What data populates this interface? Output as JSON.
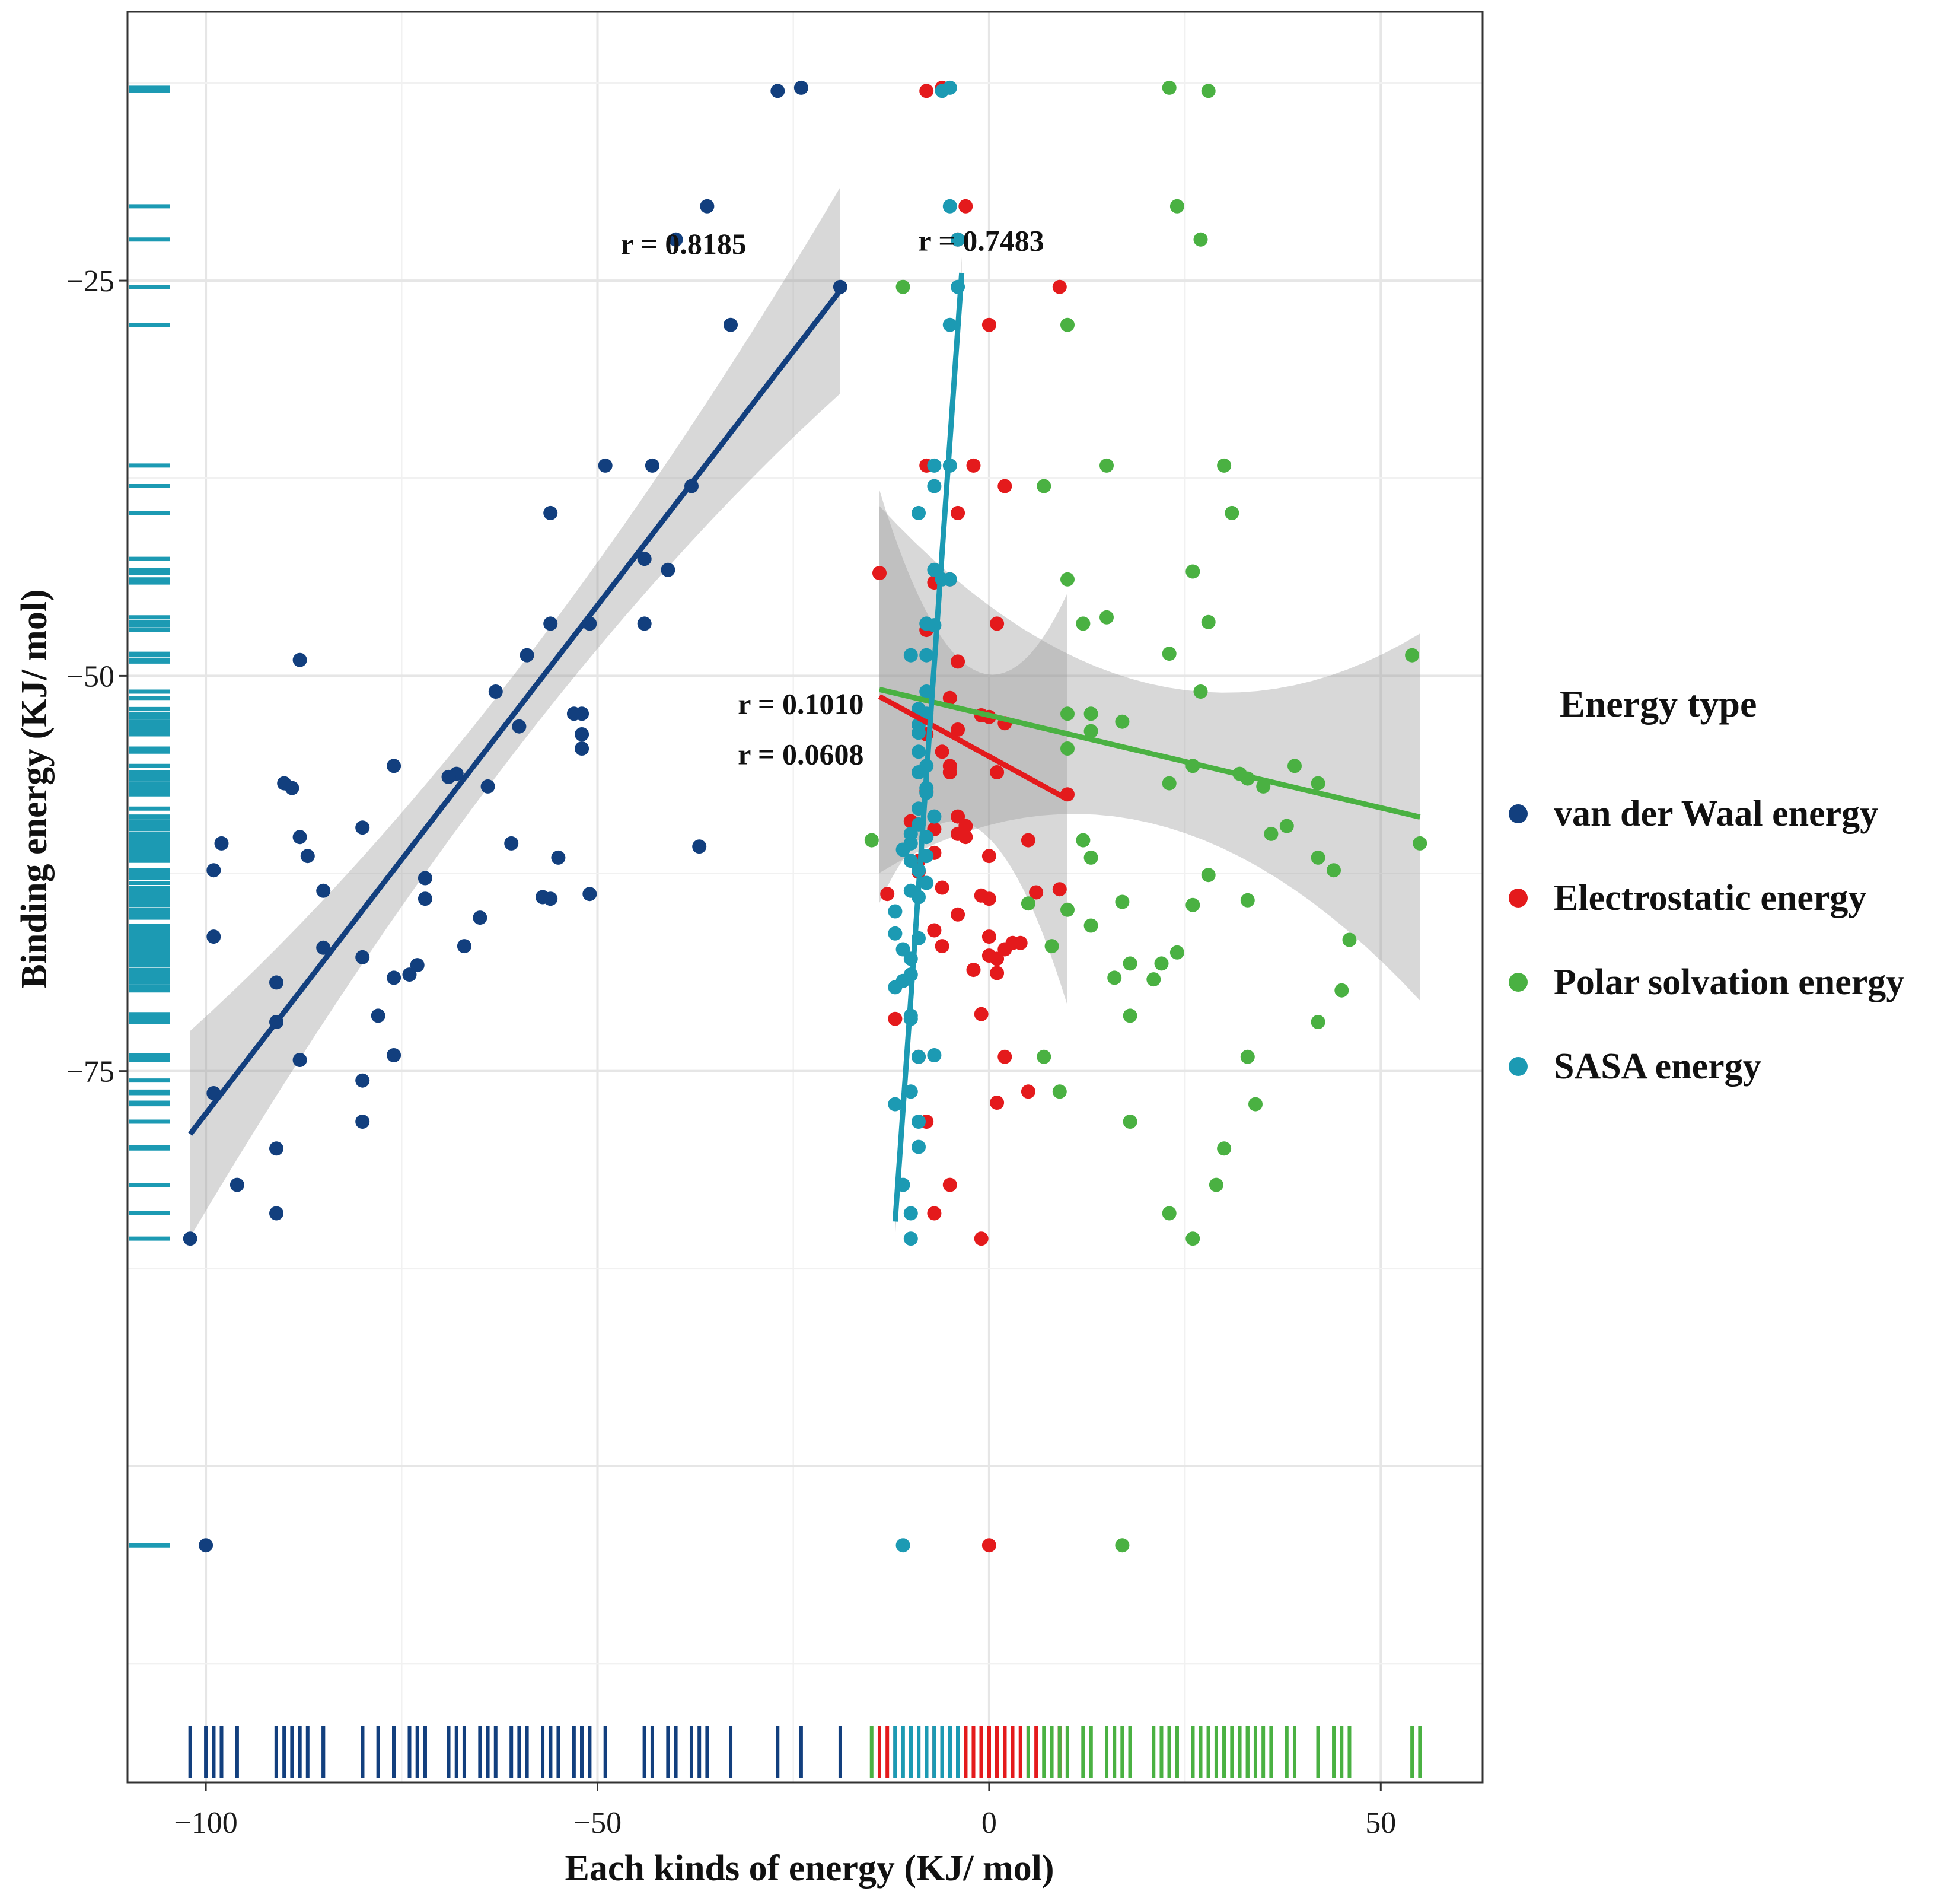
{
  "chart_data": {
    "type": "scatter",
    "xlabel": "Each kinds of energy (KJ/ mol)",
    "ylabel": "Binding energy  (KJ/ mol)",
    "xlim": [
      -110,
      63
    ],
    "ylim": [
      -120,
      -8
    ],
    "x_ticks": [
      -100,
      -50,
      0,
      50
    ],
    "x_tick_labels": [
      "−100",
      "−50",
      "0",
      "50"
    ],
    "y_ticks": [
      -25,
      -50,
      -75
    ],
    "y_tick_labels": [
      "−25",
      "−50",
      "−75"
    ],
    "grid": true,
    "legend": {
      "title": "Energy type",
      "position": "right"
    },
    "series": [
      {
        "name": "van der Waal energy",
        "color": "#123f7e",
        "r_label": "r = 0.8185",
        "fit": {
          "x0": -102,
          "x1": -19,
          "slope": 0.643,
          "intercept": -13.4,
          "band": 4.5
        },
        "points": [
          [
            -27,
            -13
          ],
          [
            -24,
            -12.8
          ],
          [
            -36,
            -20.3
          ],
          [
            -40,
            -22.4
          ],
          [
            -19,
            -25.4
          ],
          [
            -33,
            -27.8
          ],
          [
            -49,
            -36.7
          ],
          [
            -43,
            -36.7
          ],
          [
            -38,
            -38
          ],
          [
            -56,
            -39.7
          ],
          [
            -44,
            -42.6
          ],
          [
            -41,
            -43.3
          ],
          [
            -44,
            -46.7
          ],
          [
            -56,
            -46.7
          ],
          [
            -51,
            -46.7
          ],
          [
            -59,
            -48.7
          ],
          [
            -88,
            -49
          ],
          [
            -63,
            -51
          ],
          [
            -53,
            -52.4
          ],
          [
            -52,
            -52.4
          ],
          [
            -60,
            -53.2
          ],
          [
            -52,
            -53.7
          ],
          [
            -52,
            -54.6
          ],
          [
            -76,
            -55.7
          ],
          [
            -68,
            -56.2
          ],
          [
            -69,
            -56.4
          ],
          [
            -64,
            -57
          ],
          [
            -90,
            -56.8
          ],
          [
            -89,
            -57.1
          ],
          [
            -80,
            -59.6
          ],
          [
            -88,
            -60.2
          ],
          [
            -98,
            -60.6
          ],
          [
            -61,
            -60.6
          ],
          [
            -37,
            -60.8
          ],
          [
            -87,
            -61.4
          ],
          [
            -55,
            -61.5
          ],
          [
            -99,
            -62.3
          ],
          [
            -72,
            -62.8
          ],
          [
            -85,
            -63.6
          ],
          [
            -57,
            -64
          ],
          [
            -56,
            -64.1
          ],
          [
            -51,
            -63.8
          ],
          [
            -72,
            -64.1
          ],
          [
            -65,
            -65.3
          ],
          [
            -99,
            -66.5
          ],
          [
            -85,
            -67.2
          ],
          [
            -80,
            -67.8
          ],
          [
            -67,
            -67.1
          ],
          [
            -73,
            -68.3
          ],
          [
            -74,
            -68.9
          ],
          [
            -76,
            -69.1
          ],
          [
            -91,
            -69.4
          ],
          [
            -78,
            -71.5
          ],
          [
            -91,
            -71.9
          ],
          [
            -76,
            -74
          ],
          [
            -88,
            -74.3
          ],
          [
            -80,
            -75.6
          ],
          [
            -99,
            -76.4
          ],
          [
            -80,
            -78.2
          ],
          [
            -91,
            -79.9
          ],
          [
            -96,
            -82.2
          ],
          [
            -91,
            -84
          ],
          [
            -102,
            -85.6
          ],
          [
            -100,
            -105
          ]
        ]
      },
      {
        "name": "Electrostatic energy",
        "color": "#e41a1c",
        "r_label": "r = 0.0608",
        "fit": {
          "x0": -14,
          "x1": 10,
          "slope": -0.271,
          "intercept": -55.1,
          "band": 9
        },
        "points": [
          [
            -8,
            -13
          ],
          [
            -6,
            -12.8
          ],
          [
            -3,
            -20.3
          ],
          [
            -4,
            -22.4
          ],
          [
            9,
            -25.4
          ],
          [
            0,
            -27.8
          ],
          [
            -8,
            -36.7
          ],
          [
            -2,
            -36.7
          ],
          [
            2,
            -38
          ],
          [
            -4,
            -39.7
          ],
          [
            -14,
            -43.5
          ],
          [
            -5,
            -43.9
          ],
          [
            -7,
            -44.1
          ],
          [
            1,
            -46.7
          ],
          [
            -8,
            -47.1
          ],
          [
            -4,
            -49.1
          ],
          [
            -5,
            -51.4
          ],
          [
            -1,
            -52.5
          ],
          [
            0,
            -52.6
          ],
          [
            2,
            -53
          ],
          [
            -4,
            -53.4
          ],
          [
            -8,
            -53.7
          ],
          [
            -6,
            -54.8
          ],
          [
            -5,
            -55.7
          ],
          [
            -5,
            -56.1
          ],
          [
            1,
            -56.1
          ],
          [
            -8,
            -57.3
          ],
          [
            10,
            -57.5
          ],
          [
            -4,
            -58.9
          ],
          [
            -10,
            -59.2
          ],
          [
            -3,
            -59.5
          ],
          [
            -7,
            -59.7
          ],
          [
            -4,
            -60
          ],
          [
            -3,
            -60.2
          ],
          [
            -7,
            -61.2
          ],
          [
            0,
            -61.4
          ],
          [
            -9,
            -61.7
          ],
          [
            5,
            -60.4
          ],
          [
            -9,
            -62.4
          ],
          [
            -13,
            -63.8
          ],
          [
            -1,
            -63.9
          ],
          [
            -6,
            -63.4
          ],
          [
            0,
            -64.1
          ],
          [
            6,
            -63.7
          ],
          [
            9,
            -63.5
          ],
          [
            -4,
            -65.1
          ],
          [
            -7,
            -66.1
          ],
          [
            0,
            -66.5
          ],
          [
            3,
            -66.9
          ],
          [
            4,
            -66.9
          ],
          [
            -6,
            -67.1
          ],
          [
            2,
            -67.3
          ],
          [
            0,
            -67.7
          ],
          [
            1,
            -67.9
          ],
          [
            -2,
            -68.6
          ],
          [
            1,
            -68.8
          ],
          [
            -12,
            -71.7
          ],
          [
            -1,
            -71.4
          ],
          [
            -9,
            -74.1
          ],
          [
            2,
            -74.1
          ],
          [
            5,
            -76.3
          ],
          [
            1,
            -77
          ],
          [
            -8,
            -78.2
          ],
          [
            -5,
            -82.2
          ],
          [
            -7,
            -84
          ],
          [
            -1,
            -85.6
          ],
          [
            0,
            -105
          ]
        ]
      },
      {
        "name": "Polar solvation energy",
        "color": "#4ab142",
        "r_label": "r = 0.1010",
        "fit": {
          "x0": -14,
          "x1": 55,
          "slope": -0.117,
          "intercept": -52.5,
          "band": 8
        },
        "points": [
          [
            23,
            -12.8
          ],
          [
            28,
            -13
          ],
          [
            24,
            -20.3
          ],
          [
            27,
            -22.4
          ],
          [
            -11,
            -25.4
          ],
          [
            10,
            -27.8
          ],
          [
            15,
            -36.7
          ],
          [
            30,
            -36.7
          ],
          [
            7,
            -38
          ],
          [
            31,
            -39.7
          ],
          [
            10,
            -43.9
          ],
          [
            26,
            -43.4
          ],
          [
            12,
            -46.7
          ],
          [
            15,
            -46.3
          ],
          [
            28,
            -46.6
          ],
          [
            54,
            -48.7
          ],
          [
            23,
            -48.6
          ],
          [
            27,
            -51
          ],
          [
            10,
            -52.4
          ],
          [
            13,
            -52.4
          ],
          [
            17,
            -52.9
          ],
          [
            13,
            -53.5
          ],
          [
            10,
            -54.6
          ],
          [
            26,
            -55.7
          ],
          [
            23,
            -56.8
          ],
          [
            32,
            -56.2
          ],
          [
            35,
            -57
          ],
          [
            39,
            -55.7
          ],
          [
            42,
            -56.8
          ],
          [
            33,
            -56.5
          ],
          [
            36,
            -60
          ],
          [
            38,
            -59.5
          ],
          [
            12,
            -60.4
          ],
          [
            55,
            -60.6
          ],
          [
            13,
            -61.5
          ],
          [
            42,
            -61.5
          ],
          [
            44,
            -62.3
          ],
          [
            28,
            -62.6
          ],
          [
            33,
            -64.2
          ],
          [
            5,
            -64.4
          ],
          [
            26,
            -64.5
          ],
          [
            17,
            -64.3
          ],
          [
            10,
            -64.8
          ],
          [
            13,
            -65.8
          ],
          [
            46,
            -66.7
          ],
          [
            8,
            -67.1
          ],
          [
            22,
            -68.2
          ],
          [
            24,
            -67.5
          ],
          [
            18,
            -68.2
          ],
          [
            16,
            -69.1
          ],
          [
            21,
            -69.2
          ],
          [
            45,
            -69.9
          ],
          [
            18,
            -71.5
          ],
          [
            42,
            -71.9
          ],
          [
            33,
            -74.1
          ],
          [
            7,
            -74.1
          ],
          [
            9,
            -76.3
          ],
          [
            34,
            -77.1
          ],
          [
            18,
            -78.2
          ],
          [
            30,
            -79.9
          ],
          [
            29,
            -82.2
          ],
          [
            23,
            -84
          ],
          [
            26,
            -85.6
          ],
          [
            17,
            -105
          ],
          [
            -15,
            -60.4
          ]
        ]
      },
      {
        "name": "SASA energy",
        "color": "#1c9ab3",
        "r_label": "r = 0.7483",
        "fit": {
          "x0": -12,
          "x1": -3.5,
          "slope": 7.06,
          "intercept": 0.2,
          "band": 0.7
        },
        "points": [
          [
            -5,
            -12.8
          ],
          [
            -6,
            -13
          ],
          [
            -5,
            -20.3
          ],
          [
            -4,
            -22.4
          ],
          [
            -4,
            -25.4
          ],
          [
            -5,
            -27.8
          ],
          [
            -7,
            -36.7
          ],
          [
            -5,
            -36.7
          ],
          [
            -7,
            -38
          ],
          [
            -9,
            -39.7
          ],
          [
            -7,
            -43.3
          ],
          [
            -6,
            -43.9
          ],
          [
            -5,
            -43.9
          ],
          [
            -8,
            -46.7
          ],
          [
            -7,
            -46.8
          ],
          [
            -10,
            -48.7
          ],
          [
            -8,
            -48.7
          ],
          [
            -8,
            -51
          ],
          [
            -9,
            -52.1
          ],
          [
            -8,
            -52.4
          ],
          [
            -9,
            -53.1
          ],
          [
            -9,
            -53.6
          ],
          [
            -9,
            -54.8
          ],
          [
            -8,
            -55.7
          ],
          [
            -9,
            -56.1
          ],
          [
            -8,
            -57.1
          ],
          [
            -8,
            -57.4
          ],
          [
            -9,
            -58.4
          ],
          [
            -7,
            -58.9
          ],
          [
            -9,
            -59.4
          ],
          [
            -10,
            -60
          ],
          [
            -8,
            -60.2
          ],
          [
            -10,
            -60.6
          ],
          [
            -11,
            -61
          ],
          [
            -8,
            -61.4
          ],
          [
            -10,
            -61.7
          ],
          [
            -9,
            -62.3
          ],
          [
            -8,
            -63.1
          ],
          [
            -10,
            -63.6
          ],
          [
            -9,
            -64
          ],
          [
            -12,
            -64.9
          ],
          [
            -12,
            -66.3
          ],
          [
            -9,
            -66.6
          ],
          [
            -11,
            -67.3
          ],
          [
            -10,
            -67.9
          ],
          [
            -10,
            -68.9
          ],
          [
            -11,
            -69.3
          ],
          [
            -12,
            -69.7
          ],
          [
            -10,
            -71.5
          ],
          [
            -10,
            -71.7
          ],
          [
            -9,
            -74.1
          ],
          [
            -7,
            -74
          ],
          [
            -10,
            -76.3
          ],
          [
            -12,
            -77.1
          ],
          [
            -9,
            -78.2
          ],
          [
            -9,
            -79.8
          ],
          [
            -11,
            -82.2
          ],
          [
            -10,
            -84
          ],
          [
            -10,
            -85.6
          ],
          [
            -11,
            -105
          ]
        ]
      }
    ],
    "rug_y_series": "SASA energy"
  }
}
